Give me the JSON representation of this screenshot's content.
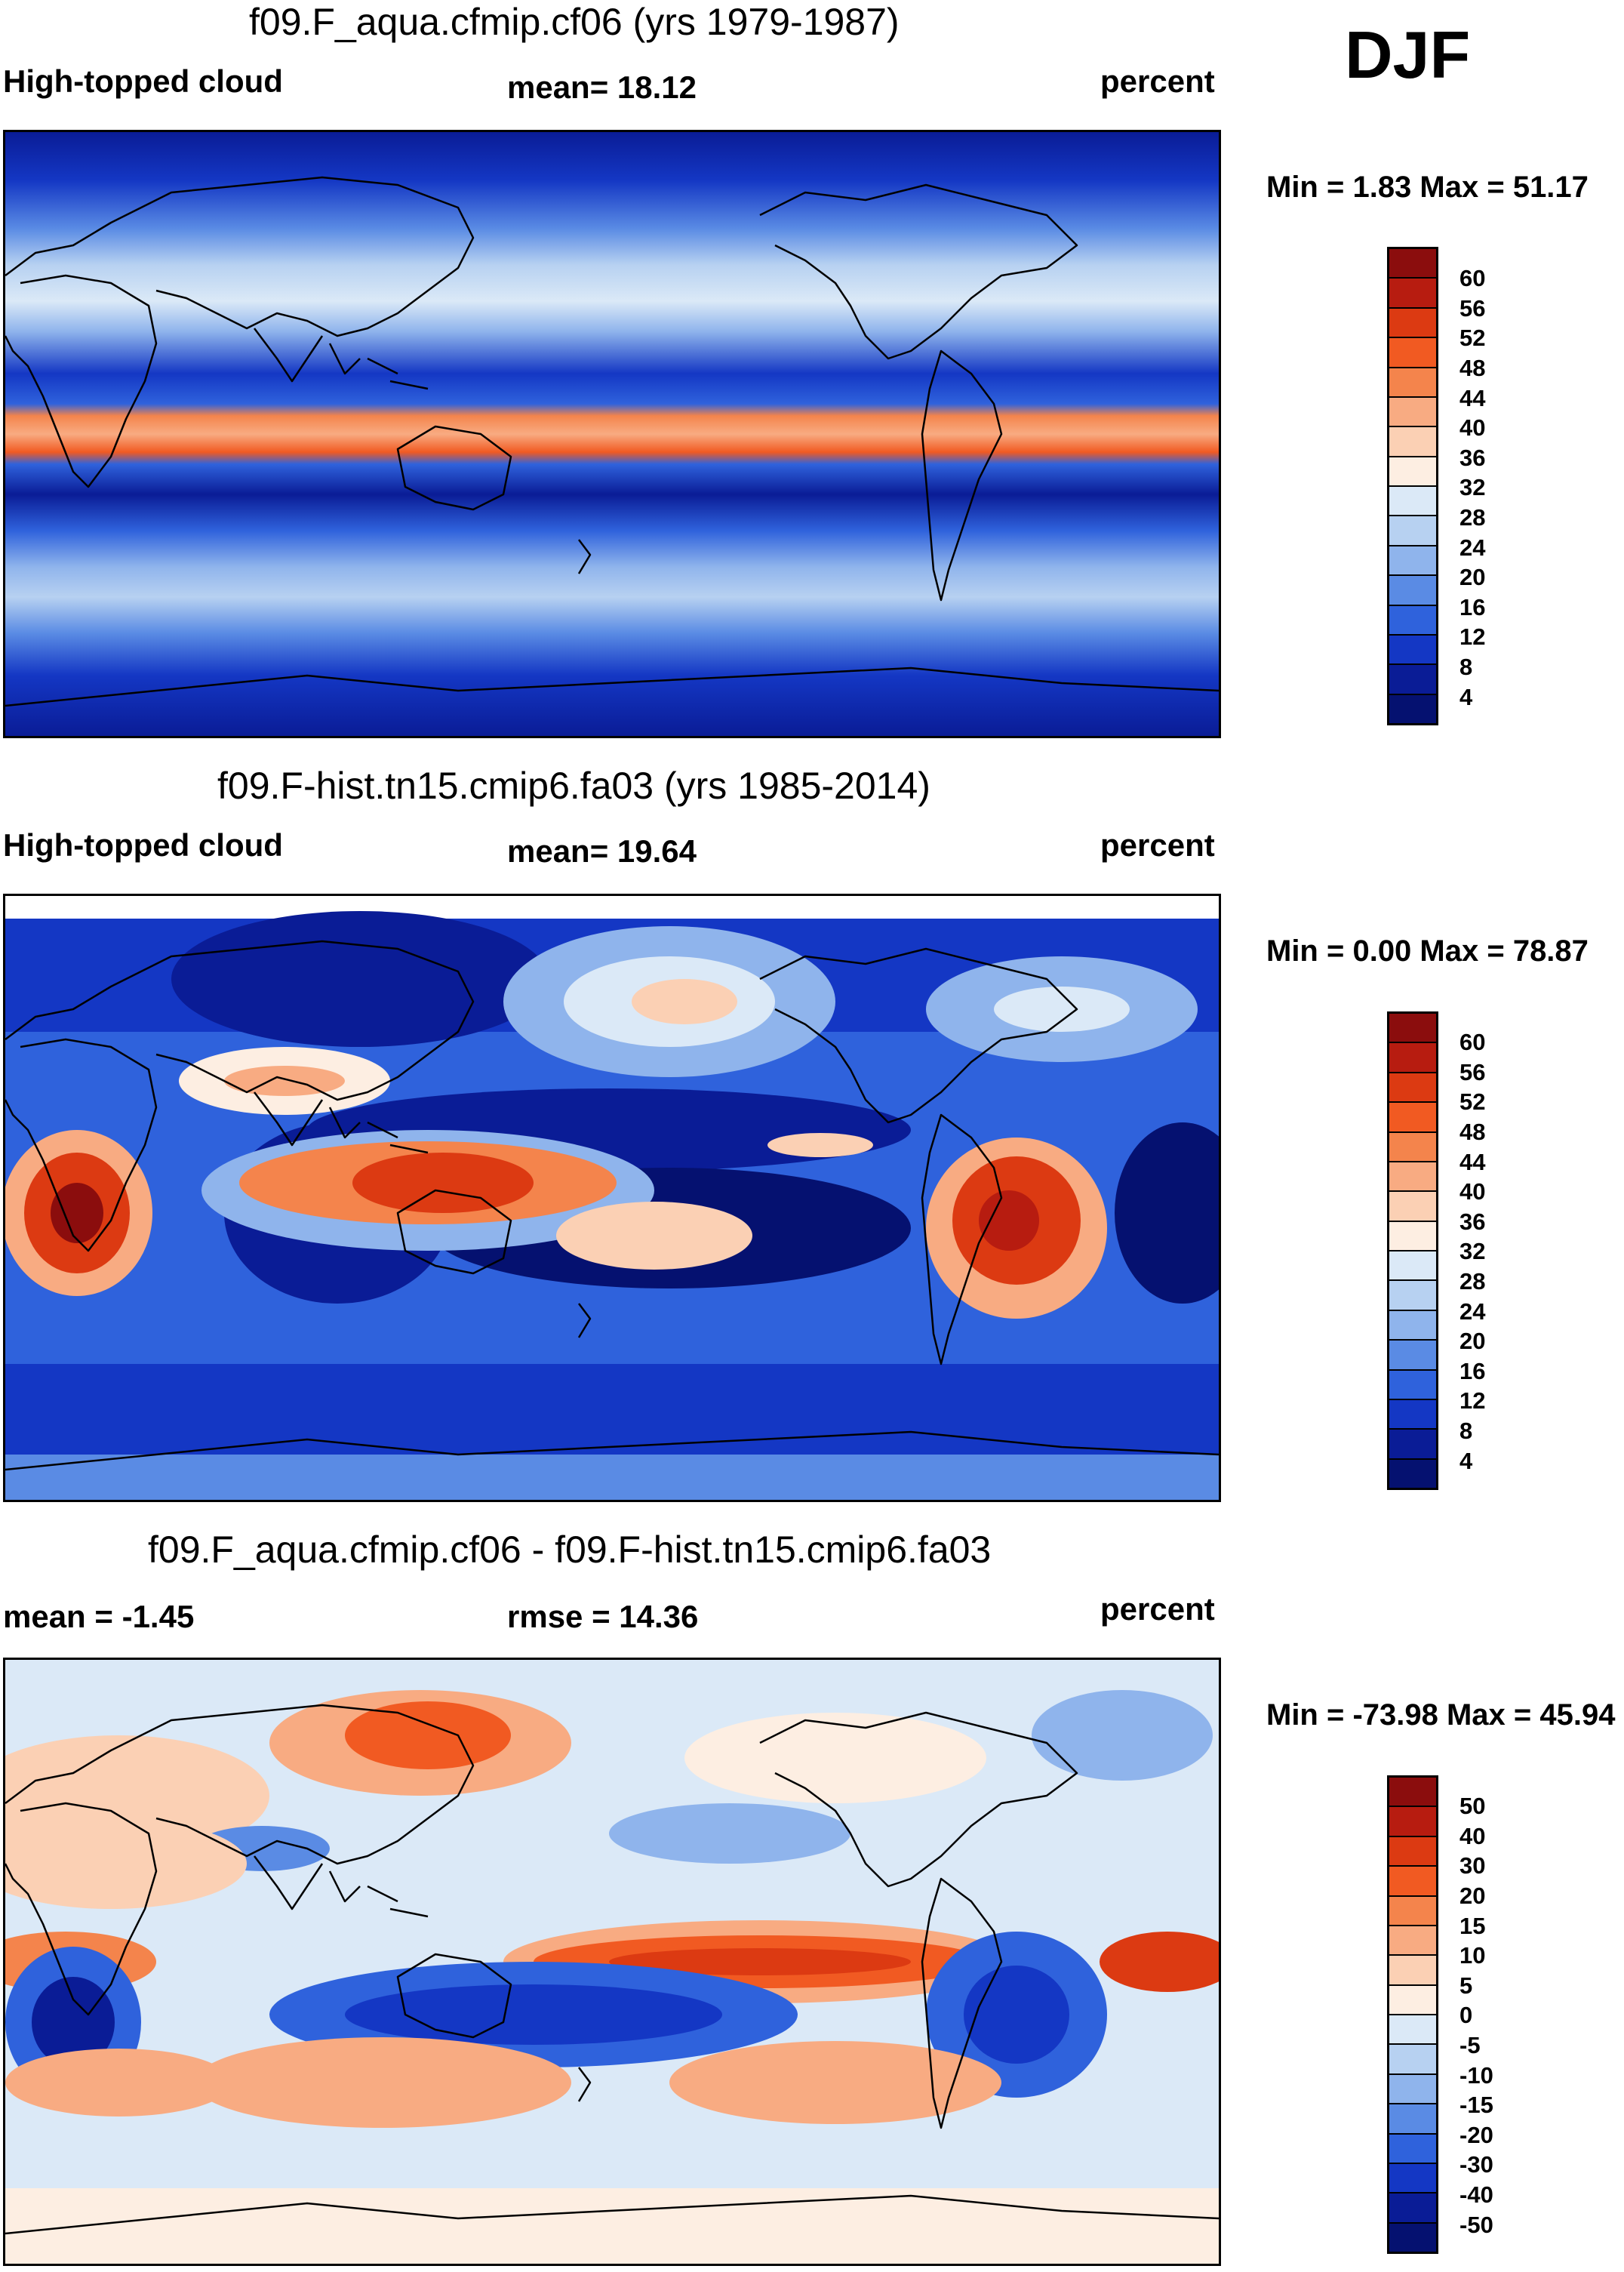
{
  "season": "DJF",
  "panels": [
    {
      "title": "f09.F_aqua.cfmip.cf06 (yrs 1979-1987)",
      "left_label": "High-topped cloud",
      "center_label": "mean=  18.12",
      "right_label": "percent",
      "minmax": "Min =   1.83 Max =  51.17",
      "colorbar_ticks": [
        "60",
        "56",
        "52",
        "48",
        "44",
        "40",
        "36",
        "32",
        "28",
        "24",
        "20",
        "16",
        "12",
        "8",
        "4"
      ]
    },
    {
      "title": "f09.F-hist.tn15.cmip6.fa03 (yrs 1985-2014)",
      "left_label": "High-topped cloud",
      "center_label": "mean=  19.64",
      "right_label": "percent",
      "minmax": "Min =   0.00 Max =  78.87",
      "colorbar_ticks": [
        "60",
        "56",
        "52",
        "48",
        "44",
        "40",
        "36",
        "32",
        "28",
        "24",
        "20",
        "16",
        "12",
        "8",
        "4"
      ]
    },
    {
      "title": "f09.F_aqua.cfmip.cf06 - f09.F-hist.tn15.cmip6.fa03",
      "left_label": "mean =  -1.45",
      "center_label": "rmse =  14.36",
      "right_label": "percent",
      "minmax": "Min = -73.98 Max =  45.94",
      "colorbar_ticks": [
        "50",
        "40",
        "30",
        "20",
        "15",
        "10",
        "5",
        "0",
        "-5",
        "-10",
        "-15",
        "-20",
        "-30",
        "-40",
        "-50"
      ]
    }
  ],
  "colors": {
    "abs_scale": [
      "#8b0d0d",
      "#b71c10",
      "#dc3a12",
      "#f15a22",
      "#f4844c",
      "#f8ab82",
      "#fbd0b4",
      "#fdeee2",
      "#dbe9f7",
      "#b7d1f1",
      "#8fb4ec",
      "#5a8be4",
      "#2f62dc",
      "#1437c4",
      "#0a1c96",
      "#051170"
    ],
    "diff_scale": [
      "#8b0d0d",
      "#b71c10",
      "#dc3a12",
      "#f15a22",
      "#f4844c",
      "#f8ab82",
      "#fbd0b4",
      "#fdeee2",
      "#dbe9f7",
      "#b7d1f1",
      "#8fb4ec",
      "#5a8be4",
      "#2f62dc",
      "#1437c4",
      "#0a1c96",
      "#051170"
    ]
  }
}
